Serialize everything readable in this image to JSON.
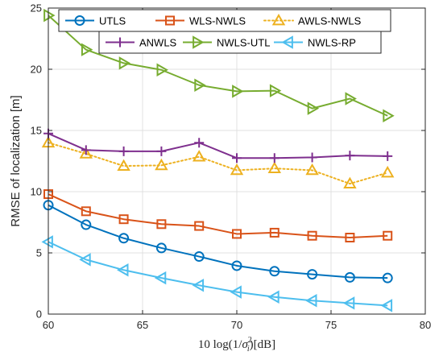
{
  "chart_data": {
    "type": "line",
    "xlabel": "10 log(1/σi²)[dB]",
    "xlabel_parts": {
      "prefix": "10 log(1/",
      "sigma": "σ",
      "sub": "i",
      "sup": "2",
      "suffix": ")[dB]"
    },
    "ylabel": "RMSE of localization [m]",
    "xlim": [
      60,
      80
    ],
    "ylim": [
      0,
      25
    ],
    "xticks": [
      60,
      65,
      70,
      75,
      80
    ],
    "yticks": [
      0,
      5,
      10,
      15,
      20,
      25
    ],
    "grid": true,
    "legend": "top",
    "x": [
      60,
      62,
      64,
      66,
      68,
      70,
      72,
      74,
      76,
      78
    ],
    "series": [
      {
        "name": "UTLS",
        "color": "#0072BD",
        "marker": "circle",
        "dash": "solid",
        "values": [
          8.9,
          7.3,
          6.2,
          5.4,
          4.7,
          3.95,
          3.5,
          3.25,
          3.0,
          2.95
        ]
      },
      {
        "name": "WLS-NWLS",
        "color": "#D95319",
        "marker": "square",
        "dash": "solid",
        "values": [
          9.8,
          8.4,
          7.75,
          7.35,
          7.2,
          6.55,
          6.65,
          6.4,
          6.25,
          6.4
        ]
      },
      {
        "name": "AWLS-NWLS",
        "color": "#EDB120",
        "marker": "triangle-up",
        "dash": "dotted",
        "values": [
          14.0,
          13.1,
          12.1,
          12.15,
          12.85,
          11.75,
          11.9,
          11.75,
          10.65,
          11.55
        ]
      },
      {
        "name": "ANWLS",
        "color": "#7E2F8E",
        "marker": "plus",
        "dash": "solid",
        "values": [
          14.75,
          13.4,
          13.3,
          13.3,
          14.0,
          12.75,
          12.75,
          12.8,
          12.95,
          12.9
        ]
      },
      {
        "name": "NWLS-UTL",
        "color": "#77AC30",
        "marker": "triangle-right",
        "dash": "solid",
        "values": [
          24.4,
          21.6,
          20.5,
          19.95,
          18.7,
          18.2,
          18.25,
          16.8,
          17.6,
          16.2
        ]
      },
      {
        "name": "NWLS-RP",
        "color": "#4DBEEE",
        "marker": "triangle-left",
        "dash": "solid",
        "values": [
          5.9,
          4.45,
          3.6,
          2.95,
          2.35,
          1.8,
          1.4,
          1.1,
          0.9,
          0.7
        ]
      }
    ]
  }
}
